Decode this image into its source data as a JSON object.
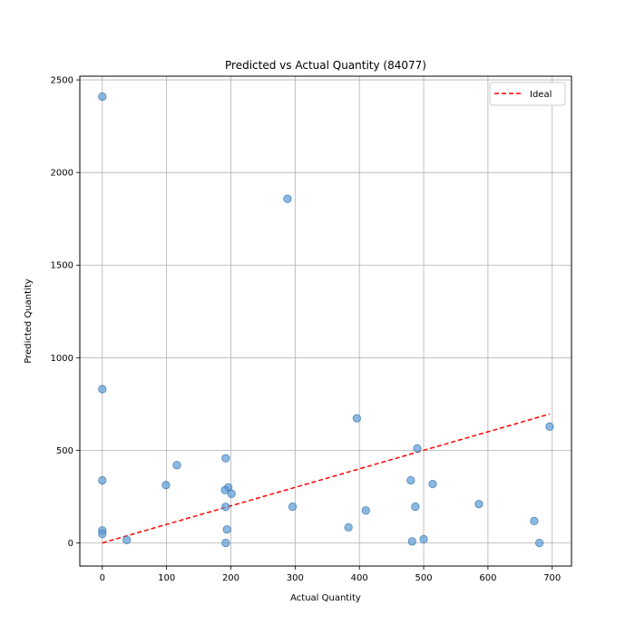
{
  "chart_data": {
    "type": "scatter",
    "title": "Predicted vs Actual Quantity (84077)",
    "xlabel": "Actual Quantity",
    "ylabel": "Predicted Quantity",
    "xlim": [
      -35,
      730
    ],
    "ylim": [
      -125,
      2520
    ],
    "xticks": [
      0,
      100,
      200,
      300,
      400,
      500,
      600,
      700
    ],
    "yticks": [
      0,
      500,
      1000,
      1500,
      2000,
      2500
    ],
    "grid": true,
    "legend": {
      "position": "top-right",
      "entries": [
        "Ideal"
      ]
    },
    "colors": {
      "points": "#5b9bd5",
      "ideal": "#ff0000"
    },
    "ideal_line": {
      "x": [
        0,
        696
      ],
      "y": [
        0,
        696
      ]
    },
    "points": [
      {
        "x": 0,
        "y": 2410
      },
      {
        "x": 288,
        "y": 1858
      },
      {
        "x": 0,
        "y": 830
      },
      {
        "x": 396,
        "y": 673
      },
      {
        "x": 696,
        "y": 628
      },
      {
        "x": 490,
        "y": 510
      },
      {
        "x": 192,
        "y": 457
      },
      {
        "x": 116,
        "y": 420
      },
      {
        "x": 0,
        "y": 338
      },
      {
        "x": 480,
        "y": 338
      },
      {
        "x": 514,
        "y": 318
      },
      {
        "x": 99,
        "y": 312
      },
      {
        "x": 196,
        "y": 300
      },
      {
        "x": 191,
        "y": 285
      },
      {
        "x": 201,
        "y": 265
      },
      {
        "x": 586,
        "y": 210
      },
      {
        "x": 296,
        "y": 196
      },
      {
        "x": 192,
        "y": 195
      },
      {
        "x": 487,
        "y": 196
      },
      {
        "x": 410,
        "y": 175
      },
      {
        "x": 672,
        "y": 118
      },
      {
        "x": 383,
        "y": 84
      },
      {
        "x": 194,
        "y": 73
      },
      {
        "x": 0,
        "y": 67
      },
      {
        "x": 0,
        "y": 48
      },
      {
        "x": 38,
        "y": 16
      },
      {
        "x": 500,
        "y": 20
      },
      {
        "x": 482,
        "y": 8
      },
      {
        "x": 192,
        "y": 0
      },
      {
        "x": 680,
        "y": 0
      }
    ]
  }
}
